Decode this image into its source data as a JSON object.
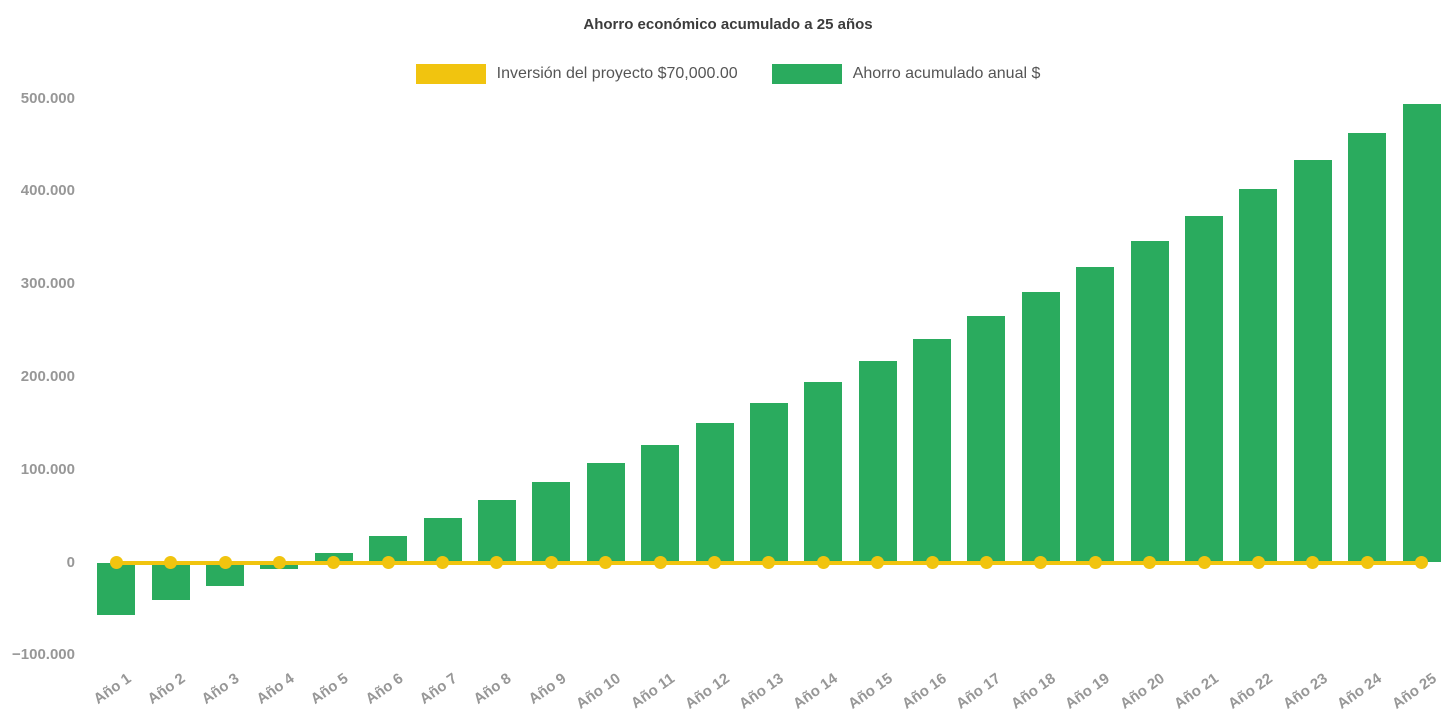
{
  "title": "Ahorro económico acumulado a 25 años",
  "colors": {
    "investment": "#F1C40F",
    "savings": "#2AAB5E",
    "title_text": "#3C3C3C",
    "legend_text": "#555555",
    "axis_text": "#979797",
    "background": "#FFFFFF"
  },
  "legend": {
    "position": "top",
    "items": [
      {
        "label": "Inversión del proyecto $70,000.00",
        "color": "#F1C40F",
        "shape": "rect"
      },
      {
        "label": "Ahorro acumulado anual $",
        "color": "#2AAB5E",
        "shape": "rect"
      }
    ]
  },
  "chart_data": {
    "type": "bar",
    "title": "Ahorro económico acumulado a 25 años",
    "xlabel": "",
    "ylabel": "",
    "grid": false,
    "legend_position": "top",
    "ylim": [
      -100000,
      500000
    ],
    "yticks": [
      {
        "value": 500000,
        "label": "500.000"
      },
      {
        "value": 400000,
        "label": "400.000"
      },
      {
        "value": 300000,
        "label": "300.000"
      },
      {
        "value": 200000,
        "label": "200.000"
      },
      {
        "value": 100000,
        "label": "100.000"
      },
      {
        "value": 0,
        "label": "0"
      },
      {
        "value": -100000,
        "label": "−100.000"
      }
    ],
    "categories": [
      "Año 1",
      "Año 2",
      "Año 3",
      "Año 4",
      "Año 5",
      "Año 6",
      "Año 7",
      "Año 8",
      "Año 9",
      "Año 10",
      "Año 11",
      "Año 12",
      "Año 13",
      "Año 14",
      "Año 15",
      "Año 16",
      "Año 17",
      "Año 18",
      "Año 19",
      "Año 20",
      "Año 21",
      "Año 22",
      "Año 23",
      "Año 24",
      "Año 25"
    ],
    "series": [
      {
        "name": "Inversión del proyecto $70,000.00",
        "type": "line",
        "color": "#F1C40F",
        "marker": "circle",
        "values": [
          0,
          0,
          0,
          0,
          0,
          0,
          0,
          0,
          0,
          0,
          0,
          0,
          0,
          0,
          0,
          0,
          0,
          0,
          0,
          0,
          0,
          0,
          0,
          0,
          0
        ]
      },
      {
        "name": "Ahorro acumulado anual $",
        "type": "bar",
        "color": "#2AAB5E",
        "values": [
          -56500,
          -40500,
          -25000,
          -6500,
          10000,
          29000,
          47500,
          67500,
          86500,
          107000,
          126500,
          150000,
          171500,
          194000,
          217000,
          240500,
          266000,
          291500,
          318000,
          346000,
          373500,
          402500,
          433500,
          462500,
          494500
        ]
      }
    ]
  }
}
